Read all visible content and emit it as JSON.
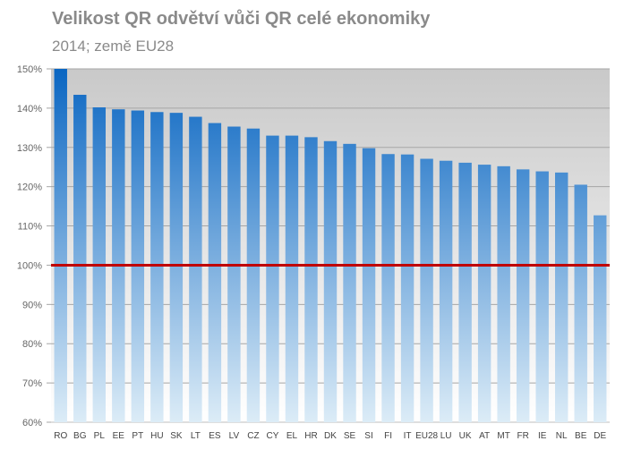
{
  "chart_data": {
    "type": "bar",
    "title": "Velikost QR odvětví vůči QR celé ekonomiky",
    "subtitle": "2014; země EU28",
    "categories": [
      "RO",
      "BG",
      "PL",
      "EE",
      "PT",
      "HU",
      "SK",
      "LT",
      "ES",
      "LV",
      "CZ",
      "CY",
      "EL",
      "HR",
      "DK",
      "SE",
      "SI",
      "FI",
      "IT",
      "EU28",
      "LU",
      "UK",
      "AT",
      "MT",
      "FR",
      "IE",
      "NL",
      "BE",
      "DE"
    ],
    "values": [
      150.0,
      143.4,
      140.2,
      139.7,
      139.4,
      139.0,
      138.8,
      137.8,
      136.2,
      135.3,
      134.8,
      133.0,
      133.0,
      132.6,
      131.6,
      130.9,
      129.8,
      128.3,
      128.2,
      127.1,
      126.6,
      126.1,
      125.6,
      125.2,
      124.4,
      123.9,
      123.6,
      120.5,
      112.7
    ],
    "ylim": [
      60,
      150
    ],
    "yticks": [
      60,
      70,
      80,
      90,
      100,
      110,
      120,
      130,
      140,
      150
    ],
    "ytick_labels": [
      "60%",
      "70%",
      "80%",
      "90%",
      "100%",
      "110%",
      "120%",
      "130%",
      "140%",
      "150%"
    ],
    "reference_line": {
      "value": 100,
      "color": "#c00000"
    },
    "bar_gradient": {
      "top": "#0a66c2",
      "bottom": "#dcecf7"
    },
    "plot_background": {
      "top": "#c9c9c9",
      "bottom": "#ffffff"
    },
    "grid": true
  }
}
